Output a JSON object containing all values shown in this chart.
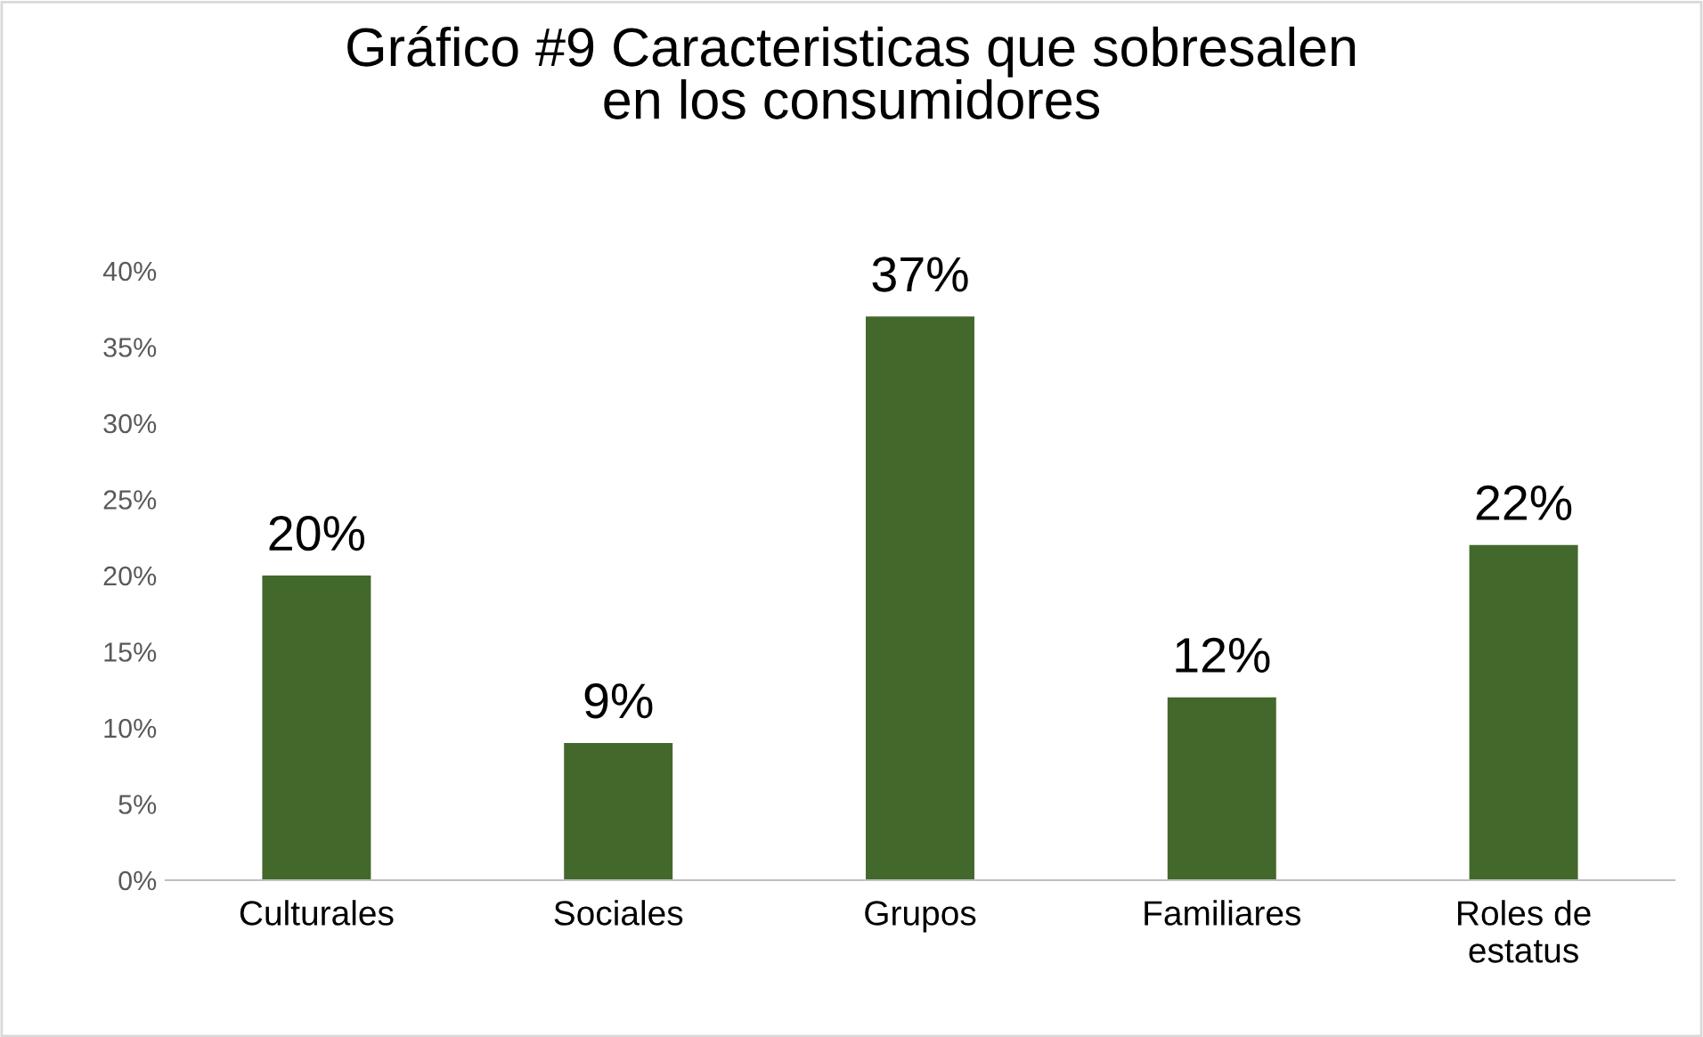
{
  "chart_data": {
    "type": "bar",
    "title": "Gráfico #9 Caracteristicas que sobresalen\nen los consumidores",
    "categories": [
      "Culturales",
      "Sociales",
      "Grupos",
      "Familiares",
      "Roles de\nestatus"
    ],
    "values": [
      20,
      9,
      37,
      12,
      22
    ],
    "value_labels": [
      "20%",
      "9%",
      "37%",
      "12%",
      "22%"
    ],
    "color": "#43682b",
    "ylim": [
      0,
      40
    ],
    "yticks": [
      {
        "value": 0,
        "label": "0%"
      },
      {
        "value": 5,
        "label": "5%"
      },
      {
        "value": 10,
        "label": "10%"
      },
      {
        "value": 15,
        "label": "15%"
      },
      {
        "value": 20,
        "label": "20%"
      },
      {
        "value": 25,
        "label": "25%"
      },
      {
        "value": 30,
        "label": "30%"
      },
      {
        "value": 35,
        "label": "35%"
      },
      {
        "value": 40,
        "label": "40%"
      }
    ],
    "grid": false,
    "legend": false
  }
}
